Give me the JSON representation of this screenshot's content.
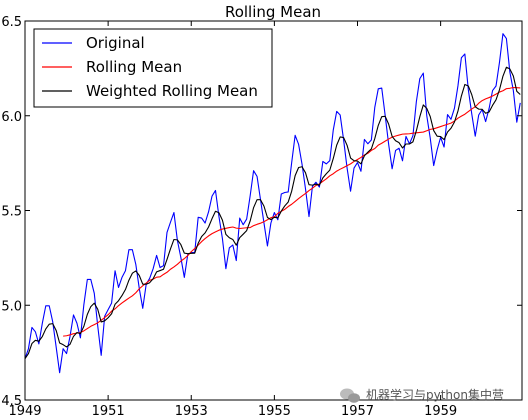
{
  "chart_data": {
    "type": "line",
    "title": "Rolling Mean",
    "xlabel": "",
    "ylabel": "",
    "xlim": [
      1949,
      1960.958
    ],
    "ylim": [
      4.5,
      6.5
    ],
    "x_ticks": [
      "1949",
      "1951",
      "1953",
      "1955",
      "1957",
      "1959"
    ],
    "y_ticks": [
      "4.5",
      "5.0",
      "5.5",
      "6.0",
      "6.5"
    ],
    "legend_position": "top-left",
    "grid": false,
    "series": [
      {
        "name": "Original",
        "color": "#0000ff",
        "x_start": 1949,
        "x_step": 0.08333,
        "values": [
          4.718,
          4.771,
          4.883,
          4.86,
          4.796,
          4.905,
          4.997,
          4.997,
          4.913,
          4.779,
          4.644,
          4.771,
          4.745,
          4.836,
          4.949,
          4.905,
          4.828,
          5.004,
          5.136,
          5.136,
          5.063,
          4.891,
          4.736,
          4.942,
          4.977,
          5.011,
          5.182,
          5.094,
          5.147,
          5.182,
          5.293,
          5.293,
          5.215,
          5.088,
          4.984,
          5.112,
          5.142,
          5.193,
          5.263,
          5.199,
          5.209,
          5.384,
          5.438,
          5.489,
          5.342,
          5.252,
          5.147,
          5.268,
          5.278,
          5.278,
          5.464,
          5.46,
          5.434,
          5.493,
          5.576,
          5.606,
          5.468,
          5.352,
          5.193,
          5.303,
          5.318,
          5.236,
          5.46,
          5.425,
          5.455,
          5.576,
          5.71,
          5.68,
          5.557,
          5.434,
          5.313,
          5.434,
          5.489,
          5.451,
          5.587,
          5.595,
          5.598,
          5.753,
          5.897,
          5.849,
          5.743,
          5.613,
          5.468,
          5.628,
          5.649,
          5.624,
          5.759,
          5.746,
          5.763,
          5.924,
          6.023,
          6.004,
          5.872,
          5.724,
          5.602,
          5.724,
          5.753,
          5.707,
          5.875,
          5.852,
          5.872,
          6.045,
          6.142,
          6.146,
          6.001,
          5.849,
          5.72,
          5.817,
          5.829,
          5.762,
          5.891,
          5.852,
          5.894,
          6.075,
          6.196,
          6.225,
          6.001,
          5.883,
          5.737,
          5.82,
          5.886,
          5.835,
          6.006,
          5.981,
          6.04,
          6.157,
          6.306,
          6.326,
          6.138,
          6.009,
          5.892,
          6.004,
          6.033,
          5.969,
          6.038,
          6.133,
          6.157,
          6.282,
          6.433,
          6.407,
          6.23,
          6.133,
          5.966,
          6.068
        ]
      },
      {
        "name": "Rolling Mean",
        "color": "#ff0000",
        "x_start": 1949.917,
        "x_step": 0.08333,
        "values": [
          4.837,
          4.839,
          4.844,
          4.85,
          4.853,
          4.856,
          4.865,
          4.877,
          4.889,
          4.898,
          4.907,
          4.921,
          4.935,
          4.95,
          4.969,
          4.981,
          4.998,
          5.012,
          5.025,
          5.038,
          5.05,
          5.066,
          5.087,
          5.103,
          5.117,
          5.132,
          5.138,
          5.148,
          5.15,
          5.163,
          5.174,
          5.19,
          5.202,
          5.216,
          5.233,
          5.246,
          5.262,
          5.283,
          5.299,
          5.317,
          5.336,
          5.352,
          5.366,
          5.378,
          5.387,
          5.396,
          5.402,
          5.406,
          5.41,
          5.413,
          5.407,
          5.405,
          5.407,
          5.409,
          5.41,
          5.42,
          5.427,
          5.433,
          5.441,
          5.451,
          5.462,
          5.467,
          5.485,
          5.496,
          5.506,
          5.521,
          5.533,
          5.548,
          5.563,
          5.577,
          5.59,
          5.605,
          5.618,
          5.632,
          5.64,
          5.654,
          5.667,
          5.683,
          5.694,
          5.708,
          5.718,
          5.727,
          5.737,
          5.746,
          5.759,
          5.769,
          5.78,
          5.793,
          5.802,
          5.817,
          5.827,
          5.845,
          5.855,
          5.866,
          5.877,
          5.887,
          5.893,
          5.898,
          5.903,
          5.904,
          5.905,
          5.908,
          5.91,
          5.912,
          5.914,
          5.921,
          5.928,
          5.931,
          5.937,
          5.943,
          5.949,
          5.955,
          5.961,
          5.972,
          5.987,
          5.998,
          6.008,
          6.022,
          6.036,
          6.047,
          6.066,
          6.08,
          6.089,
          6.096,
          6.104,
          6.114,
          6.125,
          6.132,
          6.143,
          6.145,
          6.149,
          6.148,
          6.147
        ]
      },
      {
        "name": "Weighted Rolling Mean",
        "color": "#000000",
        "x_start": 1949,
        "x_step": 0.08333,
        "values": [
          4.718,
          4.745,
          4.798,
          4.815,
          4.81,
          4.835,
          4.875,
          4.9,
          4.903,
          4.867,
          4.801,
          4.792,
          4.78,
          4.794,
          4.836,
          4.856,
          4.85,
          4.889,
          4.952,
          4.993,
          5.011,
          4.979,
          4.912,
          4.918,
          4.934,
          4.955,
          5.005,
          5.024,
          5.051,
          5.083,
          5.132,
          5.169,
          5.181,
          5.157,
          5.111,
          5.111,
          5.119,
          5.14,
          5.176,
          5.183,
          5.19,
          5.242,
          5.297,
          5.347,
          5.345,
          5.32,
          5.275,
          5.272,
          5.274,
          5.275,
          5.327,
          5.363,
          5.382,
          5.413,
          5.457,
          5.496,
          5.488,
          5.449,
          5.374,
          5.356,
          5.347,
          5.317,
          5.357,
          5.375,
          5.394,
          5.444,
          5.515,
          5.557,
          5.557,
          5.523,
          5.463,
          5.452,
          5.464,
          5.461,
          5.497,
          5.524,
          5.545,
          5.602,
          5.684,
          5.727,
          5.731,
          5.699,
          5.636,
          5.634,
          5.639,
          5.634,
          5.672,
          5.694,
          5.713,
          5.774,
          5.845,
          5.888,
          5.885,
          5.844,
          5.777,
          5.763,
          5.761,
          5.746,
          5.789,
          5.808,
          5.825,
          5.88,
          5.949,
          5.995,
          5.997,
          5.956,
          5.891,
          5.868,
          5.858,
          5.83,
          5.851,
          5.851,
          5.862,
          5.921,
          5.995,
          6.057,
          6.039,
          5.996,
          5.922,
          5.892,
          5.89,
          5.874,
          5.914,
          5.934,
          5.967,
          6.024,
          6.104,
          6.165,
          6.157,
          6.111,
          6.047,
          6.035,
          6.034,
          6.013,
          6.02,
          6.055,
          6.084,
          6.137,
          6.209,
          6.256,
          6.247,
          6.21,
          6.129,
          6.112
        ]
      }
    ]
  },
  "watermark": {
    "text": "机器学习与python集中营",
    "icon": "wechat-icon"
  }
}
